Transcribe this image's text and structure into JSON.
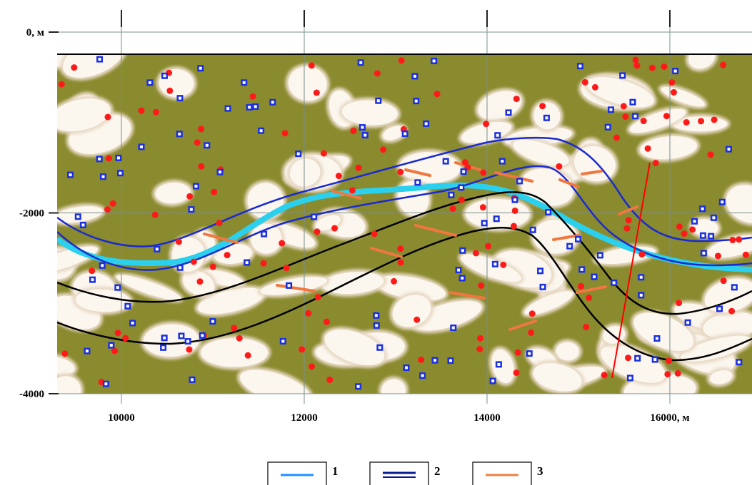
{
  "axes": {
    "x_ticks": [
      {
        "value": 10000,
        "label": "10000"
      },
      {
        "value": 12000,
        "label": "12000"
      },
      {
        "value": 14000,
        "label": "14000"
      },
      {
        "value": 16000,
        "label": "16000, м"
      }
    ],
    "y_ticks": [
      {
        "value": 0,
        "label": "0, м"
      },
      {
        "value": -2000,
        "label": "-2000"
      },
      {
        "value": -4000,
        "label": "-4000"
      }
    ],
    "x_range": [
      9300,
      17300
    ],
    "y_range": [
      -4000,
      0
    ],
    "grid": true
  },
  "legend": {
    "items": [
      {
        "number": "1",
        "color": "#1e90ff",
        "style": "single-line"
      },
      {
        "number": "2",
        "color": "#0a1a8c",
        "style": "double-line"
      },
      {
        "number": "3",
        "color": "#f08040",
        "style": "short-line"
      }
    ]
  },
  "colors": {
    "background": "#8a8a2e",
    "light_zone": "#fbf6ee",
    "horizon_cyan": "#2ad0ee",
    "horizon_blue": "#1a2ad0",
    "horizon_black": "#000000",
    "fault_red": "#ff0000",
    "short_marks": "#f07840",
    "dot_red": "#ff1a1a",
    "square_blue": "#1a30e0"
  }
}
